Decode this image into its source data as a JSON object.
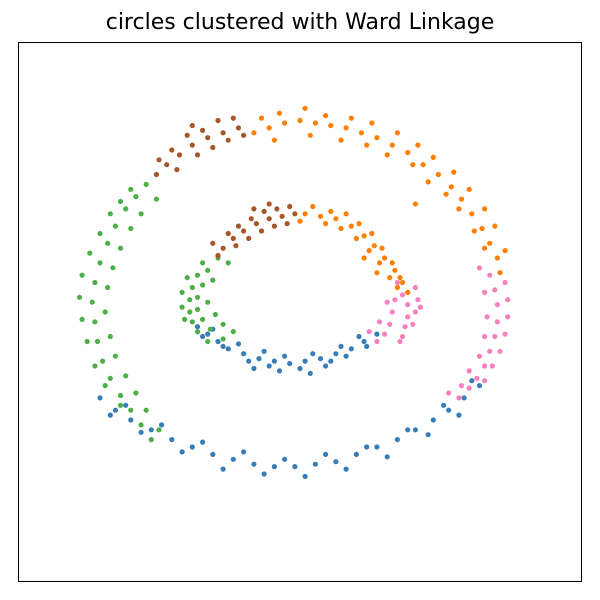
{
  "chart_data": {
    "type": "scatter",
    "title": "circles clustered with Ward Linkage",
    "xlabel": "",
    "ylabel": "",
    "xlim": [
      -1.1,
      1.1
    ],
    "ylim": [
      -1.1,
      1.1
    ],
    "grid": false,
    "legend": "none",
    "ticks_visible": false,
    "series": [
      {
        "color": "#377eb8",
        "role": "blue cluster",
        "points": [
          [
            -0.4,
            -0.06
          ],
          [
            -0.36,
            -0.09
          ],
          [
            -0.32,
            -0.12
          ],
          [
            -0.28,
            -0.15
          ],
          [
            -0.22,
            -0.17
          ],
          [
            -0.16,
            -0.19
          ],
          [
            -0.1,
            -0.2
          ],
          [
            -0.04,
            -0.21
          ],
          [
            0.02,
            -0.2
          ],
          [
            0.08,
            -0.19
          ],
          [
            0.14,
            -0.17
          ],
          [
            0.2,
            -0.15
          ],
          [
            0.25,
            -0.12
          ],
          [
            0.3,
            -0.09
          ],
          [
            -0.38,
            -0.1
          ],
          [
            -0.3,
            -0.14
          ],
          [
            -0.2,
            -0.2
          ],
          [
            -0.12,
            -0.22
          ],
          [
            0.0,
            -0.23
          ],
          [
            0.1,
            -0.22
          ],
          [
            0.18,
            -0.18
          ],
          [
            0.26,
            -0.14
          ],
          [
            -0.34,
            -0.07
          ],
          [
            -0.24,
            -0.13
          ],
          [
            -0.14,
            -0.16
          ],
          [
            -0.06,
            -0.18
          ],
          [
            0.05,
            -0.17
          ],
          [
            0.16,
            -0.14
          ],
          [
            0.23,
            -0.1
          ],
          [
            -0.18,
            -0.23
          ],
          [
            0.12,
            -0.2
          ],
          [
            -0.08,
            -0.24
          ],
          [
            0.04,
            -0.25
          ],
          [
            -0.78,
            -0.35
          ],
          [
            -0.72,
            -0.4
          ],
          [
            -0.66,
            -0.44
          ],
          [
            -0.58,
            -0.48
          ],
          [
            -0.5,
            -0.52
          ],
          [
            -0.42,
            -0.55
          ],
          [
            -0.34,
            -0.58
          ],
          [
            -0.26,
            -0.6
          ],
          [
            -0.18,
            -0.62
          ],
          [
            -0.1,
            -0.63
          ],
          [
            -0.02,
            -0.63
          ],
          [
            0.06,
            -0.62
          ],
          [
            0.14,
            -0.61
          ],
          [
            0.22,
            -0.58
          ],
          [
            0.3,
            -0.55
          ],
          [
            0.38,
            -0.52
          ],
          [
            0.45,
            -0.48
          ],
          [
            0.52,
            -0.44
          ],
          [
            0.58,
            -0.4
          ],
          [
            0.64,
            -0.35
          ],
          [
            0.7,
            -0.3
          ],
          [
            -0.74,
            -0.42
          ],
          [
            -0.62,
            -0.49
          ],
          [
            -0.46,
            -0.57
          ],
          [
            -0.3,
            -0.64
          ],
          [
            -0.14,
            -0.66
          ],
          [
            0.02,
            -0.67
          ],
          [
            0.18,
            -0.64
          ],
          [
            0.34,
            -0.59
          ],
          [
            0.5,
            -0.5
          ],
          [
            0.62,
            -0.42
          ],
          [
            -0.68,
            -0.38
          ],
          [
            -0.54,
            -0.46
          ],
          [
            -0.38,
            -0.53
          ],
          [
            -0.22,
            -0.57
          ],
          [
            -0.06,
            -0.6
          ],
          [
            0.1,
            -0.58
          ],
          [
            0.26,
            -0.55
          ],
          [
            0.42,
            -0.48
          ],
          [
            0.56,
            -0.38
          ],
          [
            0.67,
            -0.28
          ]
        ]
      },
      {
        "color": "#ff7f00",
        "role": "orange cluster",
        "points": [
          [
            0.02,
            0.4
          ],
          [
            0.08,
            0.39
          ],
          [
            0.14,
            0.38
          ],
          [
            0.2,
            0.35
          ],
          [
            0.25,
            0.31
          ],
          [
            0.29,
            0.27
          ],
          [
            0.33,
            0.22
          ],
          [
            0.37,
            0.17
          ],
          [
            0.4,
            0.12
          ],
          [
            0.42,
            0.08
          ],
          [
            0.05,
            0.43
          ],
          [
            0.12,
            0.41
          ],
          [
            0.18,
            0.4
          ],
          [
            0.23,
            0.36
          ],
          [
            0.28,
            0.32
          ],
          [
            0.32,
            0.26
          ],
          [
            0.36,
            0.2
          ],
          [
            0.39,
            0.14
          ],
          [
            0.1,
            0.36
          ],
          [
            0.16,
            0.34
          ],
          [
            0.22,
            0.3
          ],
          [
            0.27,
            0.25
          ],
          [
            0.31,
            0.2
          ],
          [
            0.35,
            0.14
          ],
          [
            0.38,
            0.1
          ],
          [
            0.0,
            0.37
          ],
          [
            0.25,
            0.22
          ],
          [
            0.3,
            0.16
          ],
          [
            -0.18,
            0.73
          ],
          [
            -0.12,
            0.75
          ],
          [
            -0.06,
            0.77
          ],
          [
            0.0,
            0.78
          ],
          [
            0.06,
            0.77
          ],
          [
            0.12,
            0.76
          ],
          [
            0.18,
            0.75
          ],
          [
            0.24,
            0.73
          ],
          [
            0.3,
            0.71
          ],
          [
            0.36,
            0.68
          ],
          [
            0.42,
            0.65
          ],
          [
            0.48,
            0.6
          ],
          [
            0.54,
            0.56
          ],
          [
            0.59,
            0.51
          ],
          [
            0.63,
            0.46
          ],
          [
            0.67,
            0.4
          ],
          [
            0.71,
            0.34
          ],
          [
            0.74,
            0.28
          ],
          [
            0.77,
            0.22
          ],
          [
            0.78,
            0.16
          ],
          [
            -0.15,
            0.79
          ],
          [
            -0.08,
            0.81
          ],
          [
            0.02,
            0.83
          ],
          [
            0.1,
            0.8
          ],
          [
            0.2,
            0.79
          ],
          [
            0.28,
            0.77
          ],
          [
            0.38,
            0.73
          ],
          [
            0.46,
            0.68
          ],
          [
            0.52,
            0.63
          ],
          [
            0.6,
            0.57
          ],
          [
            0.66,
            0.5
          ],
          [
            0.72,
            0.42
          ],
          [
            0.76,
            0.35
          ],
          [
            0.8,
            0.25
          ],
          [
            -0.1,
            0.7
          ],
          [
            0.04,
            0.72
          ],
          [
            0.16,
            0.7
          ],
          [
            0.26,
            0.68
          ],
          [
            0.34,
            0.64
          ],
          [
            0.44,
            0.6
          ],
          [
            0.5,
            0.53
          ],
          [
            0.57,
            0.48
          ],
          [
            0.62,
            0.42
          ],
          [
            0.68,
            0.33
          ],
          [
            0.72,
            0.26
          ],
          [
            0.45,
            0.44
          ]
        ]
      },
      {
        "color": "#4daf4a",
        "role": "green cluster",
        "points": [
          [
            -0.38,
            0.2
          ],
          [
            -0.4,
            0.15
          ],
          [
            -0.42,
            0.1
          ],
          [
            -0.43,
            0.05
          ],
          [
            -0.43,
            0.0
          ],
          [
            -0.42,
            -0.04
          ],
          [
            -0.4,
            -0.08
          ],
          [
            -0.36,
            -0.12
          ],
          [
            -0.32,
            0.22
          ],
          [
            -0.36,
            0.17
          ],
          [
            -0.38,
            0.11
          ],
          [
            -0.4,
            0.06
          ],
          [
            -0.4,
            0.01
          ],
          [
            -0.38,
            -0.03
          ],
          [
            -0.35,
            -0.07
          ],
          [
            -0.3,
            -0.11
          ],
          [
            -0.44,
            0.14
          ],
          [
            -0.46,
            0.08
          ],
          [
            -0.46,
            0.02
          ],
          [
            -0.45,
            -0.03
          ],
          [
            -0.34,
            0.13
          ],
          [
            -0.36,
            0.04
          ],
          [
            -0.33,
            -0.01
          ],
          [
            -0.3,
            -0.05
          ],
          [
            -0.28,
            0.2
          ],
          [
            -0.26,
            -0.08
          ],
          [
            -0.6,
            0.52
          ],
          [
            -0.64,
            0.47
          ],
          [
            -0.68,
            0.42
          ],
          [
            -0.72,
            0.35
          ],
          [
            -0.75,
            0.28
          ],
          [
            -0.78,
            0.2
          ],
          [
            -0.8,
            0.12
          ],
          [
            -0.81,
            0.04
          ],
          [
            -0.8,
            -0.04
          ],
          [
            -0.79,
            -0.12
          ],
          [
            -0.77,
            -0.2
          ],
          [
            -0.74,
            -0.27
          ],
          [
            -0.7,
            -0.34
          ],
          [
            -0.66,
            -0.4
          ],
          [
            -0.62,
            -0.46
          ],
          [
            -0.58,
            -0.52
          ],
          [
            -0.66,
            0.5
          ],
          [
            -0.7,
            0.45
          ],
          [
            -0.74,
            0.4
          ],
          [
            -0.78,
            0.32
          ],
          [
            -0.82,
            0.24
          ],
          [
            -0.85,
            0.15
          ],
          [
            -0.86,
            0.06
          ],
          [
            -0.85,
            -0.03
          ],
          [
            -0.83,
            -0.12
          ],
          [
            -0.8,
            -0.22
          ],
          [
            -0.76,
            -0.3
          ],
          [
            -0.7,
            -0.38
          ],
          [
            -0.56,
            0.46
          ],
          [
            -0.62,
            0.4
          ],
          [
            -0.66,
            0.34
          ],
          [
            -0.7,
            0.26
          ],
          [
            -0.73,
            0.18
          ],
          [
            -0.75,
            0.1
          ],
          [
            -0.76,
            0.0
          ],
          [
            -0.74,
            -0.1
          ],
          [
            -0.72,
            -0.18
          ],
          [
            -0.68,
            -0.26
          ],
          [
            -0.64,
            -0.33
          ],
          [
            -0.6,
            -0.4
          ],
          [
            -0.55,
            -0.48
          ]
        ]
      },
      {
        "color": "#f781bf",
        "role": "pink cluster",
        "points": [
          [
            0.4,
            0.07
          ],
          [
            0.42,
            0.03
          ],
          [
            0.42,
            -0.02
          ],
          [
            0.41,
            -0.06
          ],
          [
            0.4,
            -0.1
          ],
          [
            0.38,
            0.12
          ],
          [
            0.37,
            0.05
          ],
          [
            0.36,
            0.0
          ],
          [
            0.35,
            -0.05
          ],
          [
            0.33,
            -0.09
          ],
          [
            0.45,
            0.1
          ],
          [
            0.46,
            0.05
          ],
          [
            0.45,
            0.0
          ],
          [
            0.44,
            -0.05
          ],
          [
            0.31,
            -0.04
          ],
          [
            0.3,
            -0.12
          ],
          [
            0.27,
            -0.08
          ],
          [
            0.47,
            0.02
          ],
          [
            0.39,
            -0.12
          ],
          [
            0.34,
            0.04
          ],
          [
            0.74,
            0.15
          ],
          [
            0.76,
            0.09
          ],
          [
            0.77,
            0.03
          ],
          [
            0.77,
            -0.04
          ],
          [
            0.76,
            -0.1
          ],
          [
            0.74,
            -0.16
          ],
          [
            0.72,
            -0.22
          ],
          [
            0.69,
            -0.27
          ],
          [
            0.66,
            -0.31
          ],
          [
            0.62,
            -0.35
          ],
          [
            0.8,
            0.12
          ],
          [
            0.81,
            0.05
          ],
          [
            0.81,
            -0.02
          ],
          [
            0.8,
            -0.09
          ],
          [
            0.78,
            -0.16
          ],
          [
            0.75,
            -0.22
          ],
          [
            0.72,
            -0.28
          ],
          [
            0.7,
            0.18
          ],
          [
            0.72,
            0.08
          ],
          [
            0.73,
            -0.02
          ],
          [
            0.72,
            -0.1
          ],
          [
            0.7,
            -0.18
          ],
          [
            0.66,
            -0.24
          ],
          [
            0.63,
            -0.3
          ],
          [
            0.58,
            -0.33
          ]
        ]
      },
      {
        "color": "#a65628",
        "role": "brown cluster",
        "points": [
          [
            -0.3,
            0.26
          ],
          [
            -0.26,
            0.3
          ],
          [
            -0.22,
            0.33
          ],
          [
            -0.17,
            0.36
          ],
          [
            -0.12,
            0.38
          ],
          [
            -0.07,
            0.39
          ],
          [
            -0.02,
            0.4
          ],
          [
            -0.28,
            0.32
          ],
          [
            -0.24,
            0.35
          ],
          [
            -0.19,
            0.38
          ],
          [
            -0.14,
            0.41
          ],
          [
            -0.09,
            0.42
          ],
          [
            -0.04,
            0.43
          ],
          [
            -0.32,
            0.23
          ],
          [
            -0.25,
            0.27
          ],
          [
            -0.2,
            0.3
          ],
          [
            -0.15,
            0.33
          ],
          [
            -0.1,
            0.35
          ],
          [
            -0.05,
            0.36
          ],
          [
            -0.34,
            0.28
          ],
          [
            -0.18,
            0.42
          ],
          [
            -0.12,
            0.44
          ],
          [
            -0.52,
            0.6
          ],
          [
            -0.47,
            0.64
          ],
          [
            -0.42,
            0.68
          ],
          [
            -0.36,
            0.71
          ],
          [
            -0.3,
            0.73
          ],
          [
            -0.24,
            0.75
          ],
          [
            -0.56,
            0.56
          ],
          [
            -0.5,
            0.66
          ],
          [
            -0.44,
            0.72
          ],
          [
            -0.38,
            0.74
          ],
          [
            -0.32,
            0.78
          ],
          [
            -0.26,
            0.79
          ],
          [
            -0.48,
            0.58
          ],
          [
            -0.4,
            0.64
          ],
          [
            -0.34,
            0.67
          ],
          [
            -0.28,
            0.7
          ],
          [
            -0.22,
            0.72
          ],
          [
            -0.55,
            0.62
          ],
          [
            -0.42,
            0.76
          ]
        ]
      }
    ]
  }
}
